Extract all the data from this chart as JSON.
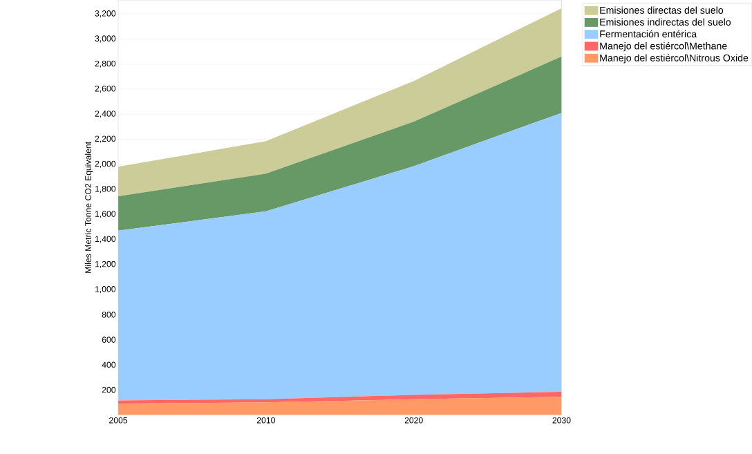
{
  "chart_data": {
    "type": "area",
    "stacked": true,
    "ylabel": "Miles Metric Tonne CO2 Equivalent",
    "categories": [
      "2005",
      "2010",
      "2020",
      "2030"
    ],
    "series": [
      {
        "name": "Manejo del estiércol\\Nitrous Oxide",
        "color": "#ff9966",
        "values": [
          90,
          100,
          125,
          145
        ]
      },
      {
        "name": "Manejo del estiércol\\Methane",
        "color": "#ff6666",
        "values": [
          25,
          25,
          35,
          40
        ]
      },
      {
        "name": "Fermentación entérica",
        "color": "#99ccff",
        "values": [
          1355,
          1500,
          1825,
          2225
        ]
      },
      {
        "name": "Emisiones indirectas del suelo",
        "color": "#669966",
        "values": [
          275,
          300,
          355,
          450
        ]
      },
      {
        "name": "Emisiones directas del suelo",
        "color": "#cccc99",
        "values": [
          235,
          260,
          325,
          385
        ]
      }
    ],
    "ylim": [
      0,
      3310
    ],
    "yticks": [
      200,
      400,
      600,
      800,
      {
        "value": 1000,
        "label": "1,000"
      },
      {
        "value": 1200,
        "label": "1,200"
      },
      {
        "value": 1400,
        "label": "1,400"
      },
      {
        "value": 1600,
        "label": "1,600"
      },
      {
        "value": 1800,
        "label": "1,800"
      },
      {
        "value": 2000,
        "label": "2,000"
      },
      {
        "value": 2200,
        "label": "2,200"
      },
      {
        "value": 2400,
        "label": "2,400"
      },
      {
        "value": 2600,
        "label": "2,600"
      },
      {
        "value": 2800,
        "label": "2,800"
      },
      {
        "value": 3000,
        "label": "3,000"
      },
      {
        "value": 3200,
        "label": "3,200"
      }
    ],
    "grid": "y",
    "legend": "top right"
  }
}
